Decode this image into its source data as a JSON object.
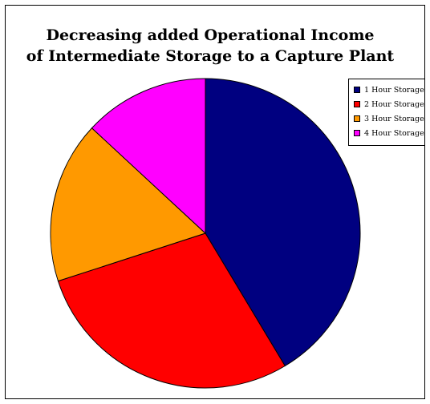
{
  "chart_data": {
    "type": "pie",
    "title": "Decreasing added Operational Income of Intermediate Storage to a Capture Plant",
    "title_lines": [
      "Decreasing added Operational Income",
      "of Intermediate Storage to a Capture Plant"
    ],
    "categories": [
      "1 Hour Storage",
      "2 Hour Storage",
      "3 Hour Storage",
      "4 Hour Storage"
    ],
    "values": [
      41.4,
      28.6,
      16.9,
      13.1
    ],
    "colors": [
      "#000080",
      "#FF0000",
      "#FF9900",
      "#FF00FF"
    ],
    "start_angle_deg": 0,
    "direction": "clockwise",
    "legend_position": "right"
  }
}
